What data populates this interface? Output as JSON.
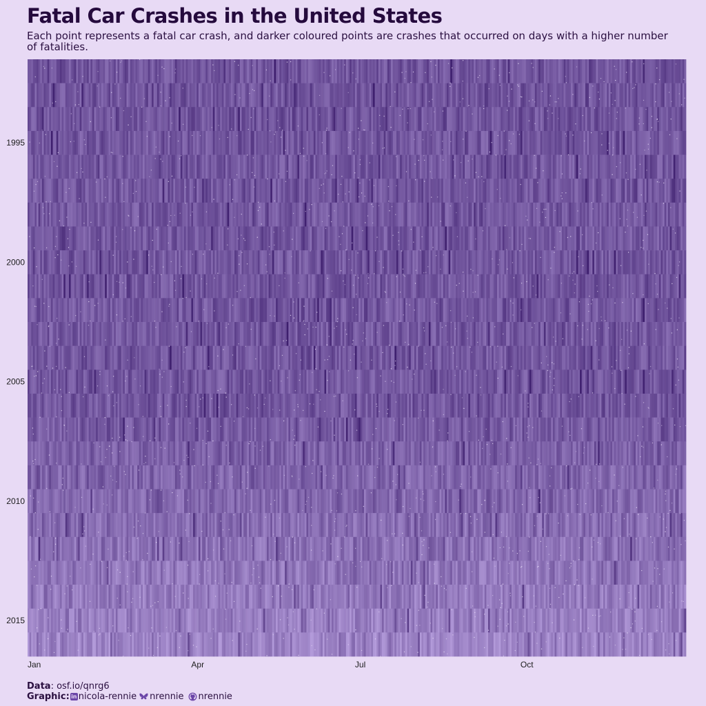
{
  "chart_data": {
    "type": "scatter",
    "title": "Fatal Car Crashes in the United States",
    "subtitle": "Each point represents a fatal car crash, and darker coloured points are crashes that occurred on days with a higher number of fatalities.",
    "x_axis": {
      "label": "",
      "variable": "day of year",
      "range": [
        1,
        366
      ],
      "ticks": [
        {
          "label": "Jan",
          "day": 1
        },
        {
          "label": "Apr",
          "day": 92
        },
        {
          "label": "Jul",
          "day": 183
        },
        {
          "label": "Oct",
          "day": 275
        }
      ]
    },
    "y_axis": {
      "label": "",
      "variable": "year",
      "range": [
        1992,
        2016
      ],
      "ticks": [
        1995,
        2000,
        2005,
        2010,
        2015
      ]
    },
    "years": [
      1992,
      1993,
      1994,
      1995,
      1996,
      1997,
      1998,
      1999,
      2000,
      2001,
      2002,
      2003,
      2004,
      2005,
      2006,
      2007,
      2008,
      2009,
      2010,
      2011,
      2012,
      2013,
      2014,
      2015,
      2016
    ],
    "color_encoding": "darker = more fatalities on that day",
    "colors": {
      "background": "#E8DAF5",
      "light": "#B39BDA",
      "dark": "#3E1F6E",
      "title": "#250A3D"
    }
  },
  "caption": {
    "data_label": "Data",
    "data_value": "osf.io/qnrg6",
    "graphic_label": "Graphic:",
    "linkedin": "nicola-rennie",
    "bluesky": "nrennie",
    "github": "nrennie",
    "icons": [
      "linkedin-icon",
      "bluesky-icon",
      "github-icon"
    ]
  }
}
